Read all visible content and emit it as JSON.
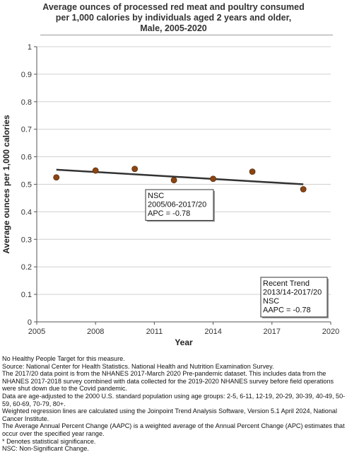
{
  "chart_data": {
    "type": "scatter",
    "title_lines": [
      "Average ounces of processed red meat and poultry consumed",
      "per 1,000 calories by individuals aged 2 years and older,",
      "Male,  2005-2020"
    ],
    "xlabel": "Year",
    "ylabel": "Average ounces per 1,000 calories",
    "xlim": [
      2005,
      2020
    ],
    "ylim": [
      0,
      1
    ],
    "x_ticks": [
      "2005",
      "2008",
      "2011",
      "2014",
      "2017",
      "2020"
    ],
    "y_ticks": [
      "0",
      "0.1",
      "0.2",
      "0.3",
      "0.4",
      "0.5",
      "0.6",
      "0.7",
      "0.8",
      "0.9",
      "1"
    ],
    "grid": true,
    "points": [
      {
        "x": 2006.0,
        "y": 0.525
      },
      {
        "x": 2008.0,
        "y": 0.55
      },
      {
        "x": 2010.0,
        "y": 0.556
      },
      {
        "x": 2012.0,
        "y": 0.515
      },
      {
        "x": 2014.0,
        "y": 0.52
      },
      {
        "x": 2016.0,
        "y": 0.546
      },
      {
        "x": 2018.6,
        "y": 0.482
      }
    ],
    "trend_line": [
      {
        "x": 2006.0,
        "y": 0.553
      },
      {
        "x": 2018.6,
        "y": 0.5
      }
    ],
    "colors": {
      "points": "#8B4513",
      "trend": "#333333",
      "grid": "#d0d0d0"
    },
    "annotations": [
      {
        "lines": [
          "NSC",
          "2005/06-2017/20",
          "APC = -0.78"
        ]
      },
      {
        "lines": [
          "Recent Trend",
          "2013/14-2017/20",
          "NSC",
          "AAPC = -0.78"
        ]
      }
    ]
  },
  "footnotes": [
    "No Healthy People Target for this measure.",
    "Source: National Center for Health Statistics. National Health and Nutrition Examination Survey.",
    "The 2017/20 data point is from the NHANES 2017-March 2020 Pre-pandemic dataset. This includes data from the NHANES 2017-2018 survey combined with data collected for the 2019-2020 NHANES survey before field operations were shut down due to the Covid pandemic.",
    "Data are age-adjusted to the 2000 U.S. standard population using age groups: 2-5, 6-11, 12-19, 20-29, 30-39, 40-49, 50-59, 60-69, 70-79, 80+.",
    "Weighted regression lines are calculated using the Joinpoint Trend Analysis Software, Version 5.1 April 2024, National Cancer Institute.",
    "The Average Annual Percent Change (AAPC) is a weighted average of the Annual Percent Change (APC) estimates that occur over the specified year range.",
    "* Denotes statistical significance.",
    "NSC: Non-Significant Change."
  ]
}
